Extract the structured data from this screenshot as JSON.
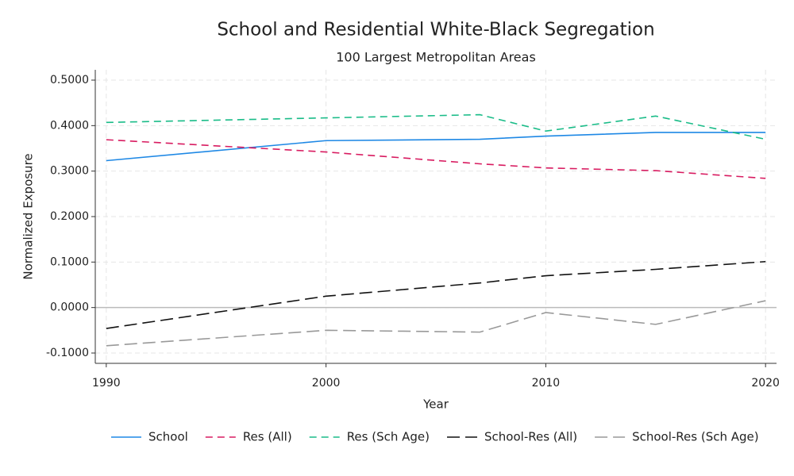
{
  "chart_data": {
    "type": "line",
    "title": "School and Residential White-Black Segregation",
    "subtitle": "100 Largest Metropolitan Areas",
    "x_label": "Year",
    "y_label": "Normalized Exposure",
    "x": [
      1990,
      2000,
      2007,
      2010,
      2015,
      2020
    ],
    "series": [
      {
        "name": "School",
        "color": "#1e88e5",
        "linestyle": "solid",
        "values": [
          0.323,
          0.367,
          0.37,
          0.377,
          0.385,
          0.385
        ]
      },
      {
        "name": "Res (All)",
        "color": "#d81b60",
        "linestyle": "dashed",
        "values": [
          0.369,
          0.342,
          0.316,
          0.307,
          0.301,
          0.284
        ]
      },
      {
        "name": "Res (Sch Age)",
        "color": "#1abc88",
        "linestyle": "dashed",
        "values": [
          0.407,
          0.417,
          0.424,
          0.388,
          0.421,
          0.37
        ]
      },
      {
        "name": "School-Res (All)",
        "color": "#111111",
        "linestyle": "longdash",
        "values": [
          -0.046,
          0.025,
          0.054,
          0.07,
          0.084,
          0.101
        ]
      },
      {
        "name": "School-Res (Sch Age)",
        "color": "#999999",
        "linestyle": "longdash",
        "values": [
          -0.084,
          -0.05,
          -0.054,
          -0.011,
          -0.037,
          0.015
        ]
      }
    ],
    "xlim": [
      1989.5,
      2020.5
    ],
    "xticks": [
      1990,
      2000,
      2010,
      2020
    ],
    "ylim": [
      -0.1227,
      0.5227
    ],
    "yticks": [
      {
        "value": -0.1,
        "label": "-0.1000"
      },
      {
        "value": 0,
        "label": "0.0000"
      },
      {
        "value": 0.1,
        "label": "0.1000"
      },
      {
        "value": 0.2,
        "label": "0.2000"
      },
      {
        "value": 0.3,
        "label": "0.3000"
      },
      {
        "value": 0.4,
        "label": "0.4000"
      },
      {
        "value": 0.5,
        "label": "0.5000"
      }
    ],
    "grid": true,
    "legend": "bottom"
  }
}
